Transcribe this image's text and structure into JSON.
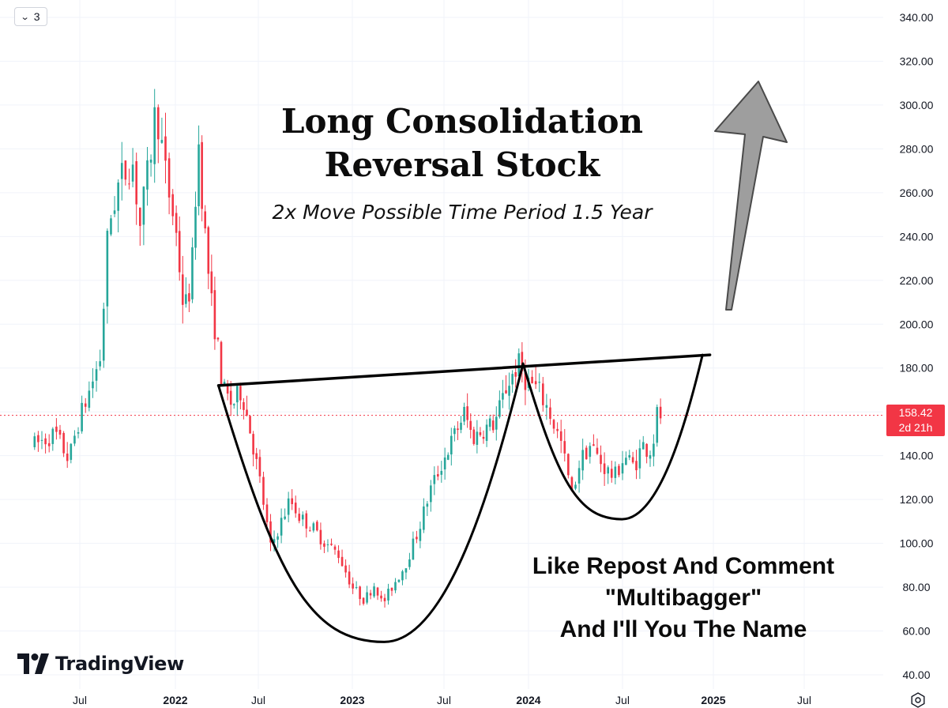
{
  "toolbar": {
    "interval_value": "3"
  },
  "annotations": {
    "title_line1": "Long Consolidation",
    "title_line2": "Reversal Stock",
    "subtitle": "2x Move Possible Time Period 1.5 Year",
    "cta_line1": "Like Repost And Comment",
    "cta_line2": "\"Multibagger\"",
    "cta_line3": "And I'll You The Name"
  },
  "brand": {
    "name": "TradingView"
  },
  "price_label": {
    "price": "158.42",
    "countdown": "2d 21h"
  },
  "colors": {
    "up": "#26a69a",
    "down": "#f23645",
    "grid": "#f0f3fa",
    "axis_text": "#131722",
    "arrow_fill": "#9e9e9e"
  },
  "icons": {
    "interval_dropdown": "chevron-down-icon",
    "settings": "gear-icon",
    "brand_logo": "tradingview-logo-icon"
  },
  "chart_data": {
    "type": "candlestick",
    "title": "Long Consolidation Reversal Stock",
    "subtitle": "2x Move Possible Time Period 1.5 Year",
    "interval": "3",
    "x_ticks": [
      "Jul",
      "2022",
      "Jul",
      "2023",
      "Jul",
      "2024",
      "Jul",
      "2025",
      "Jul"
    ],
    "y_ticks": [
      40,
      60,
      80,
      100,
      120,
      140,
      160,
      180,
      200,
      220,
      240,
      260,
      280,
      300,
      320,
      340
    ],
    "ylim": [
      36,
      346
    ],
    "x_range": [
      "2021-04-01",
      "2025-09-15"
    ],
    "last_price": 158.42,
    "grid": true,
    "price_path": [
      [
        "2021-04-05",
        145
      ],
      [
        "2021-05-15",
        150
      ],
      [
        "2021-06-10",
        138
      ],
      [
        "2021-06-25",
        153
      ],
      [
        "2021-07-20",
        170
      ],
      [
        "2021-08-10",
        185
      ],
      [
        "2021-08-25",
        245
      ],
      [
        "2021-09-15",
        265
      ],
      [
        "2021-10-10",
        275
      ],
      [
        "2021-10-25",
        245
      ],
      [
        "2021-11-10",
        270
      ],
      [
        "2021-11-25",
        300
      ],
      [
        "2021-12-15",
        265
      ],
      [
        "2022-01-01",
        245
      ],
      [
        "2022-01-20",
        205
      ],
      [
        "2022-02-05",
        220
      ],
      [
        "2022-02-20",
        285
      ],
      [
        "2022-03-05",
        245
      ],
      [
        "2022-03-20",
        210
      ],
      [
        "2022-03-31",
        195
      ],
      [
        "2022-04-15",
        170
      ],
      [
        "2022-05-05",
        163
      ],
      [
        "2022-05-25",
        170
      ],
      [
        "2022-06-15",
        150
      ],
      [
        "2022-07-05",
        127
      ],
      [
        "2022-07-25",
        98
      ],
      [
        "2022-08-15",
        110
      ],
      [
        "2022-09-01",
        120
      ],
      [
        "2022-09-20",
        112
      ],
      [
        "2022-10-15",
        107
      ],
      [
        "2022-11-10",
        100
      ],
      [
        "2022-12-05",
        95
      ],
      [
        "2023-01-01",
        80
      ],
      [
        "2023-01-25",
        74
      ],
      [
        "2023-02-15",
        82
      ],
      [
        "2023-03-01",
        72
      ],
      [
        "2023-03-20",
        80
      ],
      [
        "2023-04-15",
        90
      ],
      [
        "2023-05-10",
        105
      ],
      [
        "2023-06-05",
        125
      ],
      [
        "2023-06-30",
        138
      ],
      [
        "2023-07-25",
        150
      ],
      [
        "2023-08-15",
        160
      ],
      [
        "2023-09-01",
        148
      ],
      [
        "2023-09-25",
        152
      ],
      [
        "2023-10-20",
        155
      ],
      [
        "2023-11-15",
        172
      ],
      [
        "2023-12-10",
        182
      ],
      [
        "2023-12-25",
        175
      ],
      [
        "2024-01-20",
        170
      ],
      [
        "2024-02-10",
        160
      ],
      [
        "2024-03-05",
        145
      ],
      [
        "2024-03-25",
        122
      ],
      [
        "2024-04-10",
        138
      ],
      [
        "2024-04-30",
        145
      ],
      [
        "2024-05-25",
        135
      ],
      [
        "2024-06-15",
        130
      ],
      [
        "2024-07-05",
        140
      ],
      [
        "2024-07-25",
        135
      ],
      [
        "2024-08-10",
        145
      ],
      [
        "2024-08-25",
        142
      ],
      [
        "2024-09-05",
        150
      ],
      [
        "2024-09-12",
        165
      ],
      [
        "2024-09-16",
        158
      ]
    ],
    "drawings": {
      "neckline": {
        "from": [
          "2022-04-05",
          172
        ],
        "to": [
          "2024-12-25",
          186
        ]
      },
      "cup": {
        "left": [
          "2022-04-05",
          172
        ],
        "bottom": [
          "2023-03-05",
          55
        ],
        "right": [
          "2023-12-20",
          182
        ]
      },
      "handle": {
        "left": [
          "2023-12-20",
          182
        ],
        "bottom": [
          "2024-06-30",
          111
        ],
        "right": [
          "2024-12-10",
          186
        ]
      }
    }
  }
}
